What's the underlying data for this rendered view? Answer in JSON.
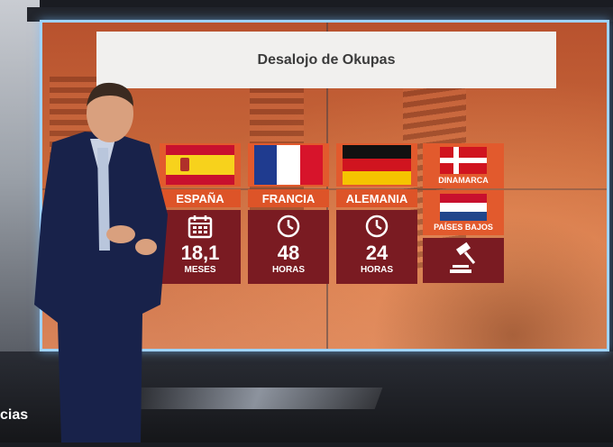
{
  "screen": {
    "title": "Desalojo de Okupas"
  },
  "countries": [
    {
      "name": "ESPAÑA",
      "value": "18,1",
      "unit": "MESES",
      "icon": "calendar-icon"
    },
    {
      "name": "FRANCIA",
      "value": "48",
      "unit": "HORAS",
      "icon": "clock-icon"
    },
    {
      "name": "ALEMANIA",
      "value": "24",
      "unit": "HORAS",
      "icon": "clock-icon"
    }
  ],
  "right_card": {
    "top_name": "DINAMARCA",
    "bottom_name": "PAÍSES BAJOS",
    "icon": "gavel-icon"
  },
  "ticker": {
    "text": "cias"
  },
  "colors": {
    "accent_orange": "#dd5428",
    "card_dark": "#7a1b22",
    "screen_border": "#9fd3ff"
  }
}
